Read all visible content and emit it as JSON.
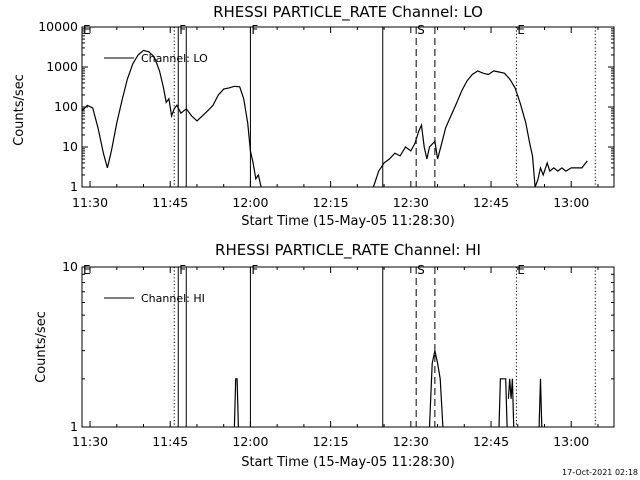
{
  "chart_data": [
    {
      "type": "line",
      "title": "RHESSI PARTICLE_RATE Channel: LO",
      "xlabel": "Start Time (15-May-05 11:28:30)",
      "ylabel": "Counts/sec",
      "yscale": "log",
      "ylim": [
        1,
        10000
      ],
      "xlim": [
        "11:28:30",
        "13:08:00"
      ],
      "x_ticks": [
        "11:30",
        "11:45",
        "12:00",
        "12:15",
        "12:30",
        "12:45",
        "13:00"
      ],
      "y_ticks": [
        "1",
        "10",
        "100",
        "1000",
        "10000"
      ],
      "legend": "Channel: LO",
      "legend_position": "top-left",
      "events": [
        {
          "time": "11:28:30",
          "style": "dotted",
          "label": "E"
        },
        {
          "time": "11:45:45",
          "style": "dotted",
          "label": ""
        },
        {
          "time": "11:46:30",
          "style": "solid",
          "label": "F"
        },
        {
          "time": "11:48:00",
          "style": "solid",
          "label": ""
        },
        {
          "time": "12:00:00",
          "style": "solid",
          "label": "F"
        },
        {
          "time": "12:24:45",
          "style": "solid",
          "label": ""
        },
        {
          "time": "12:31:00",
          "style": "dashed",
          "label": "S"
        },
        {
          "time": "12:34:30",
          "style": "dashed",
          "label": ""
        },
        {
          "time": "12:49:45",
          "style": "dotted",
          "label": "E"
        },
        {
          "time": "13:04:30",
          "style": "dotted",
          "label": ""
        }
      ],
      "series": [
        {
          "segments": [
            [
              [
                "11:28:30",
                80
              ],
              [
                "11:29:30",
                110
              ],
              [
                "11:30:30",
                95
              ],
              [
                "11:31:30",
                30
              ],
              [
                "11:32:30",
                7
              ],
              [
                "11:33:15",
                3
              ],
              [
                "11:34:00",
                8
              ],
              [
                "11:35:00",
                40
              ],
              [
                "11:36:00",
                150
              ],
              [
                "11:37:00",
                500
              ],
              [
                "11:38:00",
                1200
              ],
              [
                "11:39:00",
                2000
              ],
              [
                "11:40:00",
                2600
              ],
              [
                "11:41:00",
                2400
              ],
              [
                "11:42:00",
                1800
              ],
              [
                "11:43:00",
                800
              ],
              [
                "11:43:45",
                300
              ],
              [
                "11:44:15",
                130
              ],
              [
                "11:44:45",
                160
              ],
              [
                "11:45:15",
                60
              ],
              [
                "11:45:45",
                90
              ],
              [
                "11:46:15",
                110
              ],
              [
                "11:47:00",
                70
              ],
              [
                "11:48:00",
                90
              ],
              [
                "11:49:00",
                60
              ],
              [
                "11:50:00",
                45
              ],
              [
                "11:51:00",
                60
              ],
              [
                "11:52:00",
                80
              ],
              [
                "11:53:00",
                110
              ],
              [
                "11:54:00",
                200
              ],
              [
                "11:55:00",
                280
              ],
              [
                "11:56:00",
                300
              ],
              [
                "11:57:00",
                330
              ],
              [
                "11:58:00",
                320
              ],
              [
                "11:58:45",
                160
              ],
              [
                "11:59:30",
                40
              ],
              [
                "12:00:00",
                8
              ],
              [
                "12:00:30",
                4
              ],
              [
                "12:01:00",
                1.6
              ],
              [
                "12:01:30",
                2
              ],
              [
                "12:02:00",
                1
              ]
            ],
            [
              [
                "12:23:00",
                1
              ],
              [
                "12:24:00",
                2.5
              ],
              [
                "12:25:00",
                4
              ],
              [
                "12:26:00",
                5
              ],
              [
                "12:27:00",
                7
              ],
              [
                "12:28:00",
                6
              ],
              [
                "12:29:00",
                10
              ],
              [
                "12:30:00",
                8
              ],
              [
                "12:30:45",
                12
              ],
              [
                "12:31:30",
                25
              ],
              [
                "12:32:00",
                35
              ],
              [
                "12:32:30",
                10
              ],
              [
                "12:33:00",
                5
              ],
              [
                "12:33:30",
                10
              ],
              [
                "12:34:30",
                14
              ],
              [
                "12:35:00",
                5
              ],
              [
                "12:35:45",
                12
              ],
              [
                "12:36:30",
                30
              ],
              [
                "12:37:30",
                60
              ],
              [
                "12:38:30",
                120
              ],
              [
                "12:39:30",
                250
              ],
              [
                "12:40:30",
                450
              ],
              [
                "12:41:30",
                650
              ],
              [
                "12:42:30",
                800
              ],
              [
                "12:43:30",
                700
              ],
              [
                "12:44:30",
                650
              ],
              [
                "12:45:30",
                800
              ],
              [
                "12:46:30",
                750
              ],
              [
                "12:47:30",
                700
              ],
              [
                "12:48:30",
                500
              ],
              [
                "12:49:30",
                300
              ],
              [
                "12:50:30",
                120
              ],
              [
                "12:51:30",
                40
              ],
              [
                "12:52:15",
                12
              ],
              [
                "12:52:45",
                6
              ],
              [
                "12:53:15",
                1
              ],
              [
                "12:53:45",
                1.5
              ],
              [
                "12:54:15",
                3
              ],
              [
                "12:54:45",
                2
              ],
              [
                "12:55:30",
                4
              ],
              [
                "12:56:00",
                2.5
              ],
              [
                "12:56:45",
                3
              ],
              [
                "12:57:30",
                2.5
              ],
              [
                "12:58:15",
                3
              ],
              [
                "12:59:00",
                2.5
              ],
              [
                "13:00:00",
                3
              ],
              [
                "13:01:00",
                3
              ],
              [
                "13:02:00",
                3
              ],
              [
                "13:03:00",
                4.5
              ]
            ]
          ]
        }
      ]
    },
    {
      "type": "line",
      "title": "RHESSI PARTICLE_RATE Channel: HI",
      "xlabel": "Start Time (15-May-05 11:28:30)",
      "ylabel": "Counts/sec",
      "yscale": "log",
      "ylim": [
        1,
        10
      ],
      "xlim": [
        "11:28:30",
        "13:08:00"
      ],
      "x_ticks": [
        "11:30",
        "11:45",
        "12:00",
        "12:15",
        "12:30",
        "12:45",
        "13:00"
      ],
      "y_ticks": [
        "1",
        "10"
      ],
      "legend": "Channel: HI",
      "legend_position": "top-left",
      "events": [
        {
          "time": "11:28:30",
          "style": "dotted",
          "label": "E"
        },
        {
          "time": "11:45:45",
          "style": "dotted",
          "label": ""
        },
        {
          "time": "11:46:30",
          "style": "solid",
          "label": "F"
        },
        {
          "time": "11:48:00",
          "style": "solid",
          "label": ""
        },
        {
          "time": "12:00:00",
          "style": "solid",
          "label": "F"
        },
        {
          "time": "12:24:45",
          "style": "solid",
          "label": ""
        },
        {
          "time": "12:31:00",
          "style": "dashed",
          "label": "S"
        },
        {
          "time": "12:34:30",
          "style": "dashed",
          "label": ""
        },
        {
          "time": "12:49:45",
          "style": "dotted",
          "label": "E"
        },
        {
          "time": "13:04:30",
          "style": "dotted",
          "label": ""
        }
      ],
      "series": [
        {
          "segments": [
            [
              [
                "11:57:00",
                1
              ],
              [
                "11:57:15",
                2
              ],
              [
                "11:57:30",
                2
              ],
              [
                "11:57:45",
                1
              ]
            ],
            [
              [
                "12:33:30",
                1
              ],
              [
                "12:34:00",
                2.5
              ],
              [
                "12:34:30",
                3
              ],
              [
                "12:35:00",
                2.5
              ],
              [
                "12:35:30",
                2
              ],
              [
                "12:36:00",
                1
              ]
            ],
            [
              [
                "12:46:30",
                1
              ],
              [
                "12:46:45",
                2
              ],
              [
                "12:47:45",
                2
              ],
              [
                "12:48:00",
                1
              ]
            ],
            [
              [
                "12:48:15",
                1.5
              ],
              [
                "12:48:30",
                2
              ],
              [
                "12:48:45",
                1.5
              ],
              [
                "12:49:00",
                2
              ],
              [
                "12:49:15",
                1
              ]
            ],
            [
              [
                "12:54:00",
                1
              ],
              [
                "12:54:15",
                2
              ],
              [
                "12:54:30",
                1
              ]
            ]
          ]
        }
      ]
    }
  ],
  "timestamp": "17-Oct-2021 02:18"
}
